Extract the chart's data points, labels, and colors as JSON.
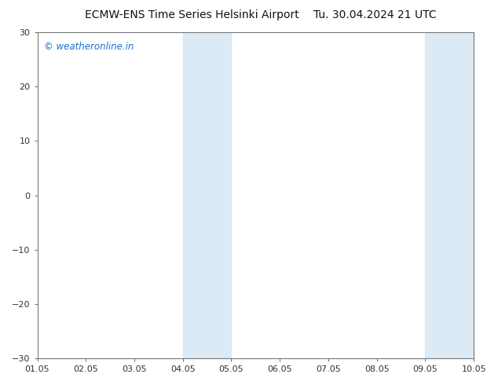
{
  "title_left": "ECMW-ENS Time Series Helsinki Airport",
  "title_right": "Tu. 30.04.2024 21 UTC",
  "title_fontsize": 10,
  "xlim": [
    0,
    9
  ],
  "ylim": [
    -30,
    30
  ],
  "yticks": [
    -30,
    -20,
    -10,
    0,
    10,
    20,
    30
  ],
  "xtick_labels": [
    "01.05",
    "02.05",
    "03.05",
    "04.05",
    "05.05",
    "06.05",
    "07.05",
    "08.05",
    "09.05",
    "10.05"
  ],
  "background_color": "#ffffff",
  "plot_bg_color": "#ffffff",
  "shading_color": "#dbeaf5",
  "shaded_regions": [
    [
      3.0,
      3.5
    ],
    [
      3.5,
      4.0
    ],
    [
      8.0,
      8.5
    ],
    [
      8.5,
      9.0
    ]
  ],
  "watermark": "© weatheronline.in",
  "watermark_color": "#1a6fd4",
  "watermark_fontsize": 8.5,
  "border_color": "#888888",
  "tick_color": "#333333",
  "tick_fontsize": 8,
  "grid_on": false
}
